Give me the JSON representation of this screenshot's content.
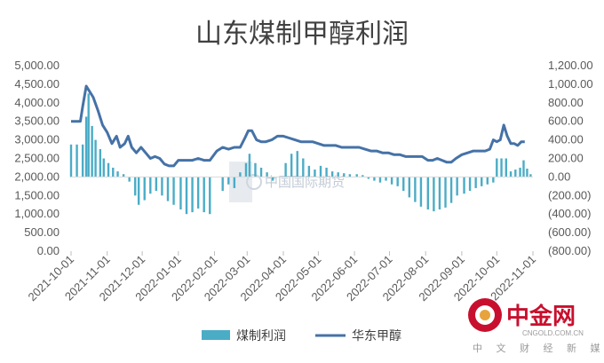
{
  "chart_data": {
    "type": "bar+line",
    "title": "山东煤制甲醇利润",
    "left_axis": {
      "ticks": [
        "5,000.00",
        "4,500.00",
        "4,000.00",
        "3,500.00",
        "3,000.00",
        "2,500.00",
        "2,000.00",
        "1,500.00",
        "1,000.00",
        "500.00",
        "0.00"
      ],
      "ylim": [
        0,
        5000
      ]
    },
    "right_axis": {
      "ticks": [
        "1,200.00",
        "1,000.00",
        "800.00",
        "600.00",
        "400.00",
        "200.00",
        "0.00",
        "(200.00)",
        "(400.00)",
        "(600.00)",
        "(800.00)"
      ],
      "ylim": [
        -800,
        1200
      ]
    },
    "x_ticks": [
      "2021-10-01",
      "2021-11-01",
      "2021-12-01",
      "2022-01-01",
      "2022-02-01",
      "2022-03-01",
      "2022-04-01",
      "2022-05-01",
      "2022-06-01",
      "2022-07-01",
      "2022-08-01",
      "2022-09-01",
      "2022-10-01",
      "2022-11-01"
    ],
    "series": [
      {
        "name": "煤制利润",
        "kind": "bar",
        "axis": "right",
        "color": "#4bacc6",
        "points": [
          [
            "2021-10-01",
            350
          ],
          [
            "2021-10-06",
            350
          ],
          [
            "2021-10-11",
            350
          ],
          [
            "2021-10-14",
            650
          ],
          [
            "2021-10-16",
            900
          ],
          [
            "2021-10-19",
            550
          ],
          [
            "2021-10-22",
            400
          ],
          [
            "2021-10-26",
            300
          ],
          [
            "2021-10-29",
            200
          ],
          [
            "2021-11-02",
            150
          ],
          [
            "2021-11-06",
            100
          ],
          [
            "2021-11-10",
            60
          ],
          [
            "2021-11-15",
            30
          ],
          [
            "2021-11-20",
            -50
          ],
          [
            "2021-11-25",
            -200
          ],
          [
            "2021-11-28",
            -300
          ],
          [
            "2021-12-03",
            -250
          ],
          [
            "2021-12-08",
            -180
          ],
          [
            "2021-12-13",
            -150
          ],
          [
            "2021-12-18",
            -200
          ],
          [
            "2021-12-23",
            -260
          ],
          [
            "2021-12-28",
            -300
          ],
          [
            "2022-01-03",
            -350
          ],
          [
            "2022-01-08",
            -400
          ],
          [
            "2022-01-13",
            -380
          ],
          [
            "2022-01-18",
            -340
          ],
          [
            "2022-01-23",
            -380
          ],
          [
            "2022-01-28",
            -400
          ],
          [
            "2022-02-08",
            -150
          ],
          [
            "2022-02-13",
            -80
          ],
          [
            "2022-02-18",
            -120
          ],
          [
            "2022-02-23",
            50
          ],
          [
            "2022-02-28",
            150
          ],
          [
            "2022-03-03",
            250
          ],
          [
            "2022-03-08",
            150
          ],
          [
            "2022-03-13",
            100
          ],
          [
            "2022-03-18",
            50
          ],
          [
            "2022-03-23",
            -40
          ],
          [
            "2022-04-03",
            150
          ],
          [
            "2022-04-08",
            250
          ],
          [
            "2022-04-13",
            280
          ],
          [
            "2022-04-18",
            200
          ],
          [
            "2022-04-23",
            120
          ],
          [
            "2022-04-28",
            80
          ],
          [
            "2022-05-03",
            120
          ],
          [
            "2022-05-08",
            100
          ],
          [
            "2022-05-13",
            60
          ],
          [
            "2022-05-18",
            50
          ],
          [
            "2022-05-23",
            40
          ],
          [
            "2022-05-28",
            30
          ],
          [
            "2022-06-03",
            30
          ],
          [
            "2022-06-08",
            20
          ],
          [
            "2022-06-13",
            -20
          ],
          [
            "2022-06-18",
            -40
          ],
          [
            "2022-06-23",
            -60
          ],
          [
            "2022-06-28",
            -40
          ],
          [
            "2022-07-03",
            -80
          ],
          [
            "2022-07-08",
            -100
          ],
          [
            "2022-07-13",
            -150
          ],
          [
            "2022-07-18",
            -220
          ],
          [
            "2022-07-23",
            -270
          ],
          [
            "2022-07-28",
            -320
          ],
          [
            "2022-08-03",
            -350
          ],
          [
            "2022-08-08",
            -370
          ],
          [
            "2022-08-13",
            -350
          ],
          [
            "2022-08-18",
            -330
          ],
          [
            "2022-08-23",
            -280
          ],
          [
            "2022-08-28",
            -200
          ],
          [
            "2022-09-03",
            -180
          ],
          [
            "2022-09-08",
            -150
          ],
          [
            "2022-09-13",
            -120
          ],
          [
            "2022-09-18",
            -100
          ],
          [
            "2022-09-23",
            -80
          ],
          [
            "2022-09-28",
            -60
          ],
          [
            "2022-10-01",
            200
          ],
          [
            "2022-10-05",
            200
          ],
          [
            "2022-10-09",
            200
          ],
          [
            "2022-10-13",
            60
          ],
          [
            "2022-10-17",
            80
          ],
          [
            "2022-10-21",
            100
          ],
          [
            "2022-10-24",
            180
          ],
          [
            "2022-10-27",
            90
          ],
          [
            "2022-10-30",
            30
          ]
        ]
      },
      {
        "name": "华东甲醇",
        "kind": "line",
        "axis": "left",
        "color": "#4572a7",
        "points": [
          [
            "2021-10-01",
            3500
          ],
          [
            "2021-10-06",
            3500
          ],
          [
            "2021-10-09",
            3500
          ],
          [
            "2021-10-11",
            3900
          ],
          [
            "2021-10-14",
            4450
          ],
          [
            "2021-10-17",
            4300
          ],
          [
            "2021-10-20",
            4150
          ],
          [
            "2021-10-24",
            3800
          ],
          [
            "2021-10-28",
            3400
          ],
          [
            "2021-11-01",
            3200
          ],
          [
            "2021-11-05",
            2900
          ],
          [
            "2021-11-09",
            3100
          ],
          [
            "2021-11-12",
            2800
          ],
          [
            "2021-11-16",
            2900
          ],
          [
            "2021-11-19",
            3100
          ],
          [
            "2021-11-22",
            2800
          ],
          [
            "2021-11-26",
            2650
          ],
          [
            "2021-11-30",
            2800
          ],
          [
            "2021-12-04",
            2650
          ],
          [
            "2021-12-08",
            2500
          ],
          [
            "2021-12-12",
            2550
          ],
          [
            "2021-12-16",
            2500
          ],
          [
            "2021-12-20",
            2350
          ],
          [
            "2021-12-24",
            2300
          ],
          [
            "2021-12-28",
            2300
          ],
          [
            "2022-01-01",
            2450
          ],
          [
            "2022-01-04",
            2450
          ],
          [
            "2022-01-08",
            2450
          ],
          [
            "2022-01-13",
            2450
          ],
          [
            "2022-01-18",
            2500
          ],
          [
            "2022-01-23",
            2450
          ],
          [
            "2022-01-28",
            2450
          ],
          [
            "2022-02-03",
            2700
          ],
          [
            "2022-02-08",
            2800
          ],
          [
            "2022-02-13",
            2750
          ],
          [
            "2022-02-18",
            2800
          ],
          [
            "2022-02-23",
            2800
          ],
          [
            "2022-02-27",
            3050
          ],
          [
            "2022-03-02",
            3250
          ],
          [
            "2022-03-05",
            3250
          ],
          [
            "2022-03-09",
            3000
          ],
          [
            "2022-03-13",
            2950
          ],
          [
            "2022-03-17",
            2950
          ],
          [
            "2022-03-22",
            3000
          ],
          [
            "2022-03-27",
            3100
          ],
          [
            "2022-04-01",
            3100
          ],
          [
            "2022-04-06",
            3050
          ],
          [
            "2022-04-11",
            3000
          ],
          [
            "2022-04-16",
            2950
          ],
          [
            "2022-04-21",
            2950
          ],
          [
            "2022-04-26",
            2950
          ],
          [
            "2022-05-01",
            2900
          ],
          [
            "2022-05-06",
            2850
          ],
          [
            "2022-05-11",
            2850
          ],
          [
            "2022-05-16",
            2850
          ],
          [
            "2022-05-21",
            2800
          ],
          [
            "2022-05-26",
            2800
          ],
          [
            "2022-05-31",
            2800
          ],
          [
            "2022-06-05",
            2800
          ],
          [
            "2022-06-10",
            2750
          ],
          [
            "2022-06-15",
            2700
          ],
          [
            "2022-06-20",
            2700
          ],
          [
            "2022-06-25",
            2650
          ],
          [
            "2022-06-30",
            2650
          ],
          [
            "2022-07-05",
            2600
          ],
          [
            "2022-07-10",
            2600
          ],
          [
            "2022-07-15",
            2550
          ],
          [
            "2022-07-20",
            2550
          ],
          [
            "2022-07-25",
            2550
          ],
          [
            "2022-07-29",
            2550
          ],
          [
            "2022-08-03",
            2450
          ],
          [
            "2022-08-07",
            2450
          ],
          [
            "2022-08-11",
            2500
          ],
          [
            "2022-08-15",
            2450
          ],
          [
            "2022-08-19",
            2400
          ],
          [
            "2022-08-23",
            2400
          ],
          [
            "2022-08-27",
            2500
          ],
          [
            "2022-09-01",
            2600
          ],
          [
            "2022-09-06",
            2650
          ],
          [
            "2022-09-11",
            2700
          ],
          [
            "2022-09-16",
            2700
          ],
          [
            "2022-09-21",
            2700
          ],
          [
            "2022-09-25",
            2750
          ],
          [
            "2022-09-28",
            3000
          ],
          [
            "2022-10-01",
            2950
          ],
          [
            "2022-10-04",
            3000
          ],
          [
            "2022-10-07",
            3400
          ],
          [
            "2022-10-10",
            3100
          ],
          [
            "2022-10-13",
            2900
          ],
          [
            "2022-10-16",
            2900
          ],
          [
            "2022-10-19",
            2850
          ],
          [
            "2022-10-22",
            2950
          ],
          [
            "2022-10-25",
            2950
          ]
        ]
      }
    ],
    "legend": {
      "placement": "bottom",
      "entries": [
        "煤制利润",
        "华东甲醇"
      ]
    },
    "grid": false
  },
  "watermark": {
    "text": "中国国际期货"
  },
  "logo": {
    "name": "中金网",
    "domain": "CNGOLD.COM.CN",
    "tagline": "中 文 财 经 新 媒 体",
    "color": "#c8102e"
  }
}
